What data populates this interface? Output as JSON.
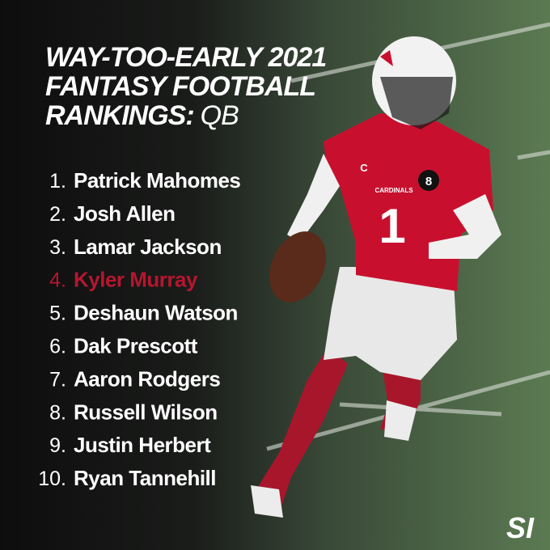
{
  "title": {
    "lines": [
      "WAY-TOO-EARLY 2021",
      "FANTASY FOOTBALL",
      "RANKINGS:"
    ],
    "position": "QB"
  },
  "rankings": [
    {
      "rank": "1.",
      "name": "Patrick Mahomes",
      "color": "#ffffff"
    },
    {
      "rank": "2.",
      "name": "Josh Allen",
      "color": "#ffffff"
    },
    {
      "rank": "3.",
      "name": "Lamar Jackson",
      "color": "#ffffff"
    },
    {
      "rank": "4.",
      "name": "Kyler Murray",
      "color": "#b5162f"
    },
    {
      "rank": "5.",
      "name": "Deshaun Watson",
      "color": "#ffffff"
    },
    {
      "rank": "6.",
      "name": "Dak Prescott",
      "color": "#ffffff"
    },
    {
      "rank": "7.",
      "name": "Aaron Rodgers",
      "color": "#ffffff"
    },
    {
      "rank": "8.",
      "name": "Russell Wilson",
      "color": "#ffffff"
    },
    {
      "rank": "9.",
      "name": "Justin Herbert",
      "color": "#ffffff"
    },
    {
      "rank": "10.",
      "name": "Ryan Tannehill",
      "color": "#ffffff"
    }
  ],
  "jersey": {
    "team": "CARDINALS",
    "number": "1",
    "patch": "8",
    "captain": "C"
  },
  "logo": "SI"
}
